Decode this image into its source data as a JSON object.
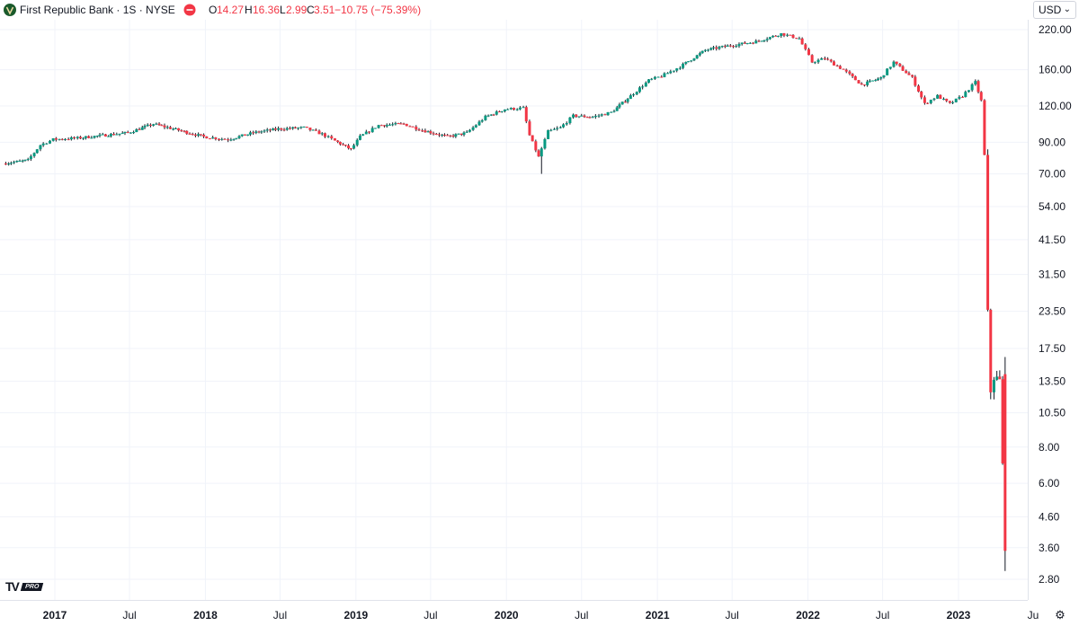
{
  "header": {
    "symbol_title": "First Republic Bank · 1S · NYSE",
    "ohlc": {
      "o_label": "O",
      "o_value": "14.27",
      "h_label": "H",
      "h_value": "16.36",
      "l_label": "L",
      "l_value": "2.99",
      "c_label": "C",
      "c_value": "3.51",
      "change": "−10.75 (−75.39%)"
    }
  },
  "currency_selector": "USD",
  "brand": {
    "mark": "TV",
    "badge": "PRO"
  },
  "colors": {
    "up": "#089981",
    "down": "#f23645",
    "grid": "#f0f3fa",
    "text": "#131722"
  },
  "icons": {
    "logo": "first-republic-logo-icon",
    "remove": "minus-circle-icon",
    "settings": "gear-icon",
    "chevron": "chevron-down-icon"
  },
  "chart_data": {
    "type": "candlestick",
    "scale": "log",
    "interval": "1S",
    "y_ticks": [
      "220.00",
      "160.00",
      "120.00",
      "90.00",
      "70.00",
      "54.00",
      "41.50",
      "31.50",
      "23.50",
      "17.50",
      "13.50",
      "10.50",
      "8.00",
      "6.00",
      "4.60",
      "3.60",
      "2.80"
    ],
    "x_ticks": [
      {
        "label": "2017",
        "date": "2017-01-01",
        "bold": true
      },
      {
        "label": "Jul",
        "date": "2017-07-01",
        "bold": false
      },
      {
        "label": "2018",
        "date": "2018-01-01",
        "bold": true
      },
      {
        "label": "Jul",
        "date": "2018-07-01",
        "bold": false
      },
      {
        "label": "2019",
        "date": "2019-01-01",
        "bold": true
      },
      {
        "label": "Jul",
        "date": "2019-07-01",
        "bold": false
      },
      {
        "label": "2020",
        "date": "2020-01-01",
        "bold": true
      },
      {
        "label": "Jul",
        "date": "2020-07-01",
        "bold": false
      },
      {
        "label": "2021",
        "date": "2021-01-01",
        "bold": true
      },
      {
        "label": "Jul",
        "date": "2021-07-01",
        "bold": false
      },
      {
        "label": "2022",
        "date": "2022-01-01",
        "bold": true
      },
      {
        "label": "Jul",
        "date": "2022-07-01",
        "bold": false
      },
      {
        "label": "2023",
        "date": "2023-01-01",
        "bold": true
      },
      {
        "label": "Ju",
        "date": "2023-07-01",
        "bold": false
      }
    ],
    "ylim": [
      2.8,
      220
    ],
    "xlim": [
      "2016-09-01",
      "2023-07-15"
    ],
    "grid": true,
    "series": [
      {
        "date": "2016-09-01",
        "close": 76
      },
      {
        "date": "2016-11-01",
        "close": 78
      },
      {
        "date": "2016-12-01",
        "close": 88
      },
      {
        "date": "2017-01-01",
        "close": 92
      },
      {
        "date": "2017-03-01",
        "close": 93
      },
      {
        "date": "2017-05-01",
        "close": 95
      },
      {
        "date": "2017-07-01",
        "close": 97
      },
      {
        "date": "2017-09-01",
        "close": 104
      },
      {
        "date": "2017-11-01",
        "close": 99
      },
      {
        "date": "2018-01-01",
        "close": 94
      },
      {
        "date": "2018-03-01",
        "close": 92
      },
      {
        "date": "2018-05-01",
        "close": 97
      },
      {
        "date": "2018-07-01",
        "close": 100
      },
      {
        "date": "2018-09-01",
        "close": 101
      },
      {
        "date": "2018-10-15",
        "close": 96
      },
      {
        "date": "2018-11-15",
        "close": 91
      },
      {
        "date": "2018-12-24",
        "close": 85
      },
      {
        "date": "2019-01-15",
        "close": 94
      },
      {
        "date": "2019-03-01",
        "close": 103
      },
      {
        "date": "2019-05-01",
        "close": 104
      },
      {
        "date": "2019-06-15",
        "close": 99
      },
      {
        "date": "2019-08-15",
        "close": 94
      },
      {
        "date": "2019-10-01",
        "close": 97
      },
      {
        "date": "2019-11-15",
        "close": 110
      },
      {
        "date": "2020-01-01",
        "close": 117
      },
      {
        "date": "2020-02-15",
        "close": 118
      },
      {
        "date": "2020-03-01",
        "close": 95
      },
      {
        "date": "2020-03-23",
        "close": 80
      },
      {
        "date": "2020-04-15",
        "close": 98
      },
      {
        "date": "2020-05-15",
        "close": 101
      },
      {
        "date": "2020-06-15",
        "close": 111
      },
      {
        "date": "2020-08-01",
        "close": 110
      },
      {
        "date": "2020-09-15",
        "close": 114
      },
      {
        "date": "2020-11-01",
        "close": 130
      },
      {
        "date": "2020-12-15",
        "close": 147
      },
      {
        "date": "2021-01-15",
        "close": 152
      },
      {
        "date": "2021-03-01",
        "close": 164
      },
      {
        "date": "2021-05-01",
        "close": 187
      },
      {
        "date": "2021-07-01",
        "close": 194
      },
      {
        "date": "2021-09-01",
        "close": 200
      },
      {
        "date": "2021-11-01",
        "close": 213
      },
      {
        "date": "2021-12-15",
        "close": 205
      },
      {
        "date": "2022-01-15",
        "close": 170
      },
      {
        "date": "2022-02-15",
        "close": 175
      },
      {
        "date": "2022-04-01",
        "close": 160
      },
      {
        "date": "2022-05-15",
        "close": 142
      },
      {
        "date": "2022-07-01",
        "close": 150
      },
      {
        "date": "2022-08-01",
        "close": 170
      },
      {
        "date": "2022-09-15",
        "close": 150
      },
      {
        "date": "2022-10-15",
        "close": 122
      },
      {
        "date": "2022-11-15",
        "close": 130
      },
      {
        "date": "2022-12-15",
        "close": 122
      },
      {
        "date": "2023-01-15",
        "close": 130
      },
      {
        "date": "2023-02-15",
        "close": 145
      },
      {
        "date": "2023-03-01",
        "close": 125
      },
      {
        "date": "2023-03-10",
        "close": 81
      },
      {
        "date": "2023-03-17",
        "close": 23
      },
      {
        "date": "2023-03-24",
        "close": 12.5
      },
      {
        "date": "2023-04-01",
        "close": 14
      },
      {
        "date": "2023-04-15",
        "close": 13.5
      },
      {
        "date": "2023-04-28",
        "close": 3.51
      }
    ],
    "last_bar": {
      "open": 14.27,
      "high": 16.36,
      "low": 2.99,
      "close": 3.51
    },
    "notable_lows": [
      {
        "date": "2020-03-23",
        "low": 70
      },
      {
        "date": "2023-04-28",
        "low": 2.99
      }
    ]
  }
}
